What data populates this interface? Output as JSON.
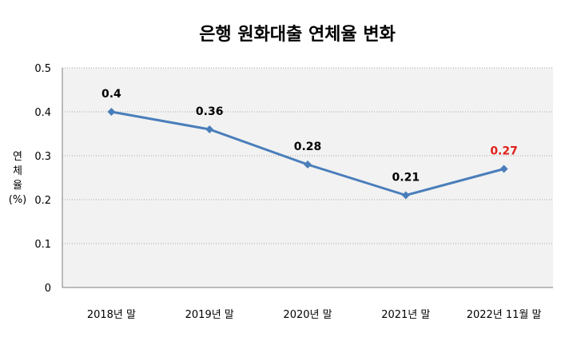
{
  "chart_data": {
    "type": "line",
    "title": "은행 원화대출 연체율 변화",
    "ylabel_chars": [
      "연",
      "체",
      "율"
    ],
    "ylabel_unit": "(%)",
    "xlabel": "",
    "categories": [
      "2018년 말",
      "2019년 말",
      "2020년 말",
      "2021년 말",
      "2022년 11월 말"
    ],
    "series": [
      {
        "values": [
          0.4,
          0.36,
          0.28,
          0.21,
          0.27
        ],
        "color": "#4a7ebb"
      }
    ],
    "data_labels": [
      "0.4",
      "0.36",
      "0.28",
      "0.21",
      "0.27"
    ],
    "data_label_colors": [
      "#000000",
      "#000000",
      "#000000",
      "#000000",
      "#e0201a"
    ],
    "ylim": [
      0,
      0.5
    ],
    "yticks": [
      0,
      0.1,
      0.2,
      0.3,
      0.4,
      0.5
    ],
    "ytick_labels": [
      "0",
      "0.1",
      "0.2",
      "0.3",
      "0.4",
      "0.5"
    ],
    "grid": true,
    "legend": "none",
    "plot_background": "#f2f2f2"
  }
}
